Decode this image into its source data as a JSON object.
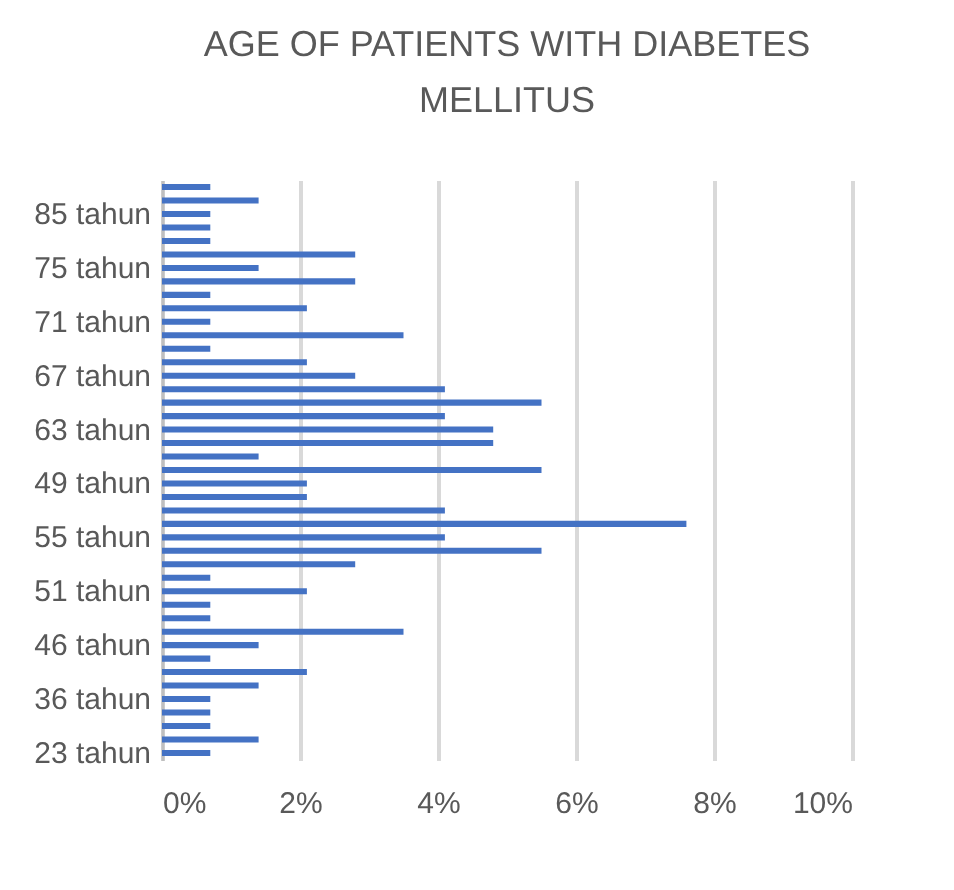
{
  "chart_data": {
    "type": "bar",
    "orientation": "horizontal",
    "title": "AGE OF PATIENTS WITH DIABETES MELLITUS",
    "categories": [
      null,
      null,
      "85 tahun",
      null,
      null,
      null,
      "75 tahun",
      null,
      null,
      null,
      "71 tahun",
      null,
      null,
      null,
      "67 tahun",
      null,
      null,
      null,
      "63 tahun",
      null,
      null,
      null,
      "49 tahun",
      null,
      null,
      null,
      "55 tahun",
      null,
      null,
      null,
      "51 tahun",
      null,
      null,
      null,
      "46 tahun",
      null,
      null,
      null,
      "36 tahun",
      null,
      null,
      null,
      "23 tahun"
    ],
    "values": [
      0.7,
      1.4,
      0.7,
      0.7,
      0.7,
      2.8,
      1.4,
      2.8,
      0.7,
      2.1,
      0.7,
      3.5,
      0.7,
      2.1,
      2.8,
      4.1,
      5.5,
      4.1,
      4.8,
      4.8,
      1.4,
      5.5,
      2.1,
      2.1,
      4.1,
      7.6,
      4.1,
      5.5,
      2.8,
      0.7,
      2.1,
      0.7,
      0.7,
      3.5,
      1.4,
      0.7,
      2.1,
      1.4,
      0.7,
      0.7,
      0.7,
      1.4,
      0.7
    ],
    "color": "#4472c4",
    "xlim": [
      0,
      10
    ],
    "xticks": [
      {
        "value": 0,
        "label": "0%"
      },
      {
        "value": 2,
        "label": "2%"
      },
      {
        "value": 4,
        "label": "4%"
      },
      {
        "value": 6,
        "label": "6%"
      },
      {
        "value": 8,
        "label": "8%"
      },
      {
        "value": 10,
        "label": "10%"
      }
    ],
    "grid": "x"
  }
}
